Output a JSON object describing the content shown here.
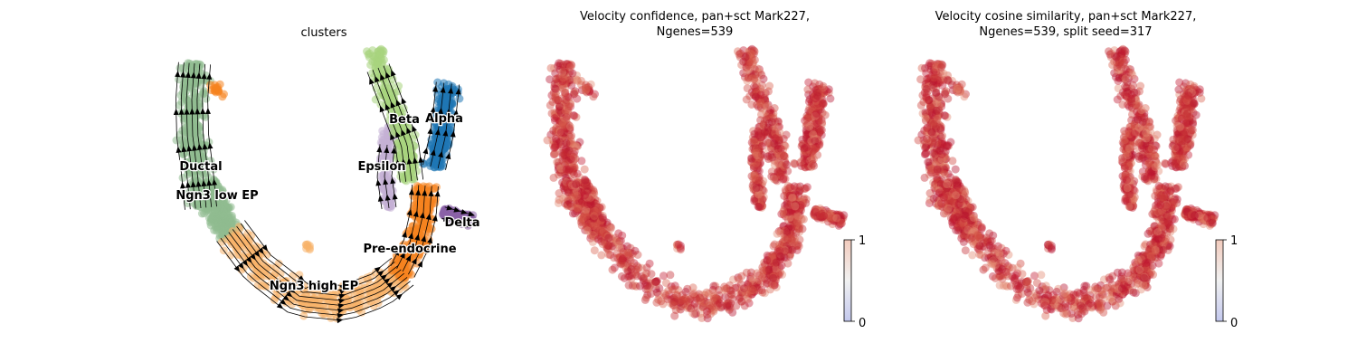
{
  "chart_data": [
    {
      "type": "scatter",
      "title": "clusters",
      "overlay": "velocity streamlines with arrows",
      "legend": "on data",
      "grid": false,
      "colors": {
        "Ductal": "#8fbc8f",
        "Ngn3 low EP": "#8fbc8f",
        "Ngn3 high EP": "#f7b26a",
        "Pre-endocrine": "#f5841f",
        "Beta": "#a8d37e",
        "Alpha": "#1f77b4",
        "Delta": "#8b62a8",
        "Epsilon": "#c5b0d5"
      },
      "clusters": [
        {
          "name": "Ductal",
          "label": "Ductal"
        },
        {
          "name": "Ngn3 low EP",
          "label": "Ngn3 low EP"
        },
        {
          "name": "Ngn3 high EP",
          "label": "Ngn3 high EP"
        },
        {
          "name": "Pre-endocrine",
          "label": "Pre-endocrine"
        },
        {
          "name": "Beta",
          "label": "Beta"
        },
        {
          "name": "Alpha",
          "label": "Alpha"
        },
        {
          "name": "Delta",
          "label": "Delta"
        },
        {
          "name": "Epsilon",
          "label": "Epsilon"
        }
      ]
    },
    {
      "type": "scatter",
      "title": "Velocity confidence, pan+sct Mark227, Ngenes=539",
      "title_lines": [
        "Velocity confidence, pan+sct Mark227,",
        "Ngenes=539"
      ],
      "colormap": "coolwarm",
      "colorbar": {
        "min": 0,
        "max": 1,
        "ticks": [
          "0",
          "1"
        ]
      },
      "typical_value_range": [
        0.85,
        1.0
      ],
      "grid": false
    },
    {
      "type": "scatter",
      "title": "Velocity cosine similarity, pan+sct Mark227, Ngenes=539, split seed=317",
      "title_lines": [
        "Velocity cosine similarity, pan+sct Mark227,",
        "Ngenes=539, split seed=317"
      ],
      "colormap": "coolwarm",
      "colorbar": {
        "min": 0,
        "max": 1,
        "ticks": [
          "0",
          "1"
        ]
      },
      "typical_value_range": [
        0.85,
        1.0
      ],
      "grid": false
    }
  ]
}
